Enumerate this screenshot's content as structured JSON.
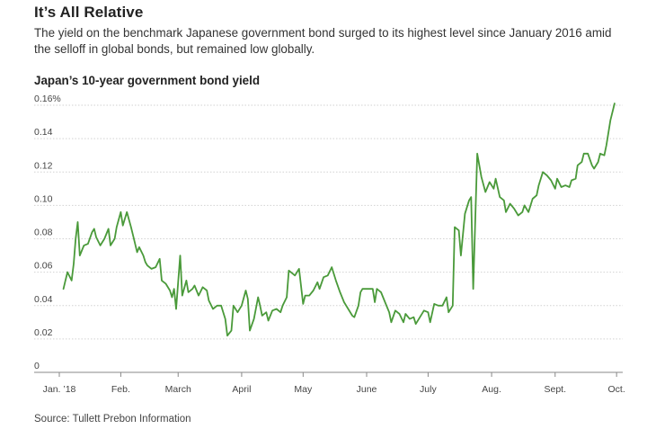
{
  "header": {
    "title": "It’s All Relative",
    "subtitle": "The yield on the benchmark Japanese government bond surged to its highest level since January 2016 amid the selloff in global bonds, but remained low globally."
  },
  "footer": {
    "source": "Source: Tullett Prebon Information"
  },
  "chart_data": {
    "type": "line",
    "title": "Japan’s 10-year government bond yield",
    "xlabel": "",
    "ylabel": "",
    "x_ticks": [
      "Jan. ’18",
      "Feb.",
      "March",
      "April",
      "May",
      "June",
      "July",
      "Aug.",
      "Sept.",
      "Oct."
    ],
    "y_ticks": [
      "0",
      "0.02",
      "0.04",
      "0.06",
      "0.08",
      "0.10",
      "0.12",
      "0.14",
      "0.16%"
    ],
    "ylim": [
      0,
      0.16
    ],
    "xlim": [
      "2018-01-02",
      "2018-10-04"
    ],
    "grid": "horizontal",
    "color": "#4a9a3a",
    "series": [
      {
        "values": [
          [
            "2018-01-04",
            0.05
          ],
          [
            "2018-01-05",
            0.055
          ],
          [
            "2018-01-06",
            0.06
          ],
          [
            "2018-01-08",
            0.055
          ],
          [
            "2018-01-09",
            0.065
          ],
          [
            "2018-01-10",
            0.08
          ],
          [
            "2018-01-11",
            0.09
          ],
          [
            "2018-01-12",
            0.07
          ],
          [
            "2018-01-14",
            0.076
          ],
          [
            "2018-01-16",
            0.077
          ],
          [
            "2018-01-18",
            0.084
          ],
          [
            "2018-01-19",
            0.086
          ],
          [
            "2018-01-20",
            0.081
          ],
          [
            "2018-01-22",
            0.076
          ],
          [
            "2018-01-24",
            0.08
          ],
          [
            "2018-01-26",
            0.086
          ],
          [
            "2018-01-27",
            0.076
          ],
          [
            "2018-01-29",
            0.08
          ],
          [
            "2018-01-30",
            0.087
          ],
          [
            "2018-02-01",
            0.096
          ],
          [
            "2018-02-02",
            0.088
          ],
          [
            "2018-02-04",
            0.096
          ],
          [
            "2018-02-06",
            0.087
          ],
          [
            "2018-02-07",
            0.082
          ],
          [
            "2018-02-09",
            0.072
          ],
          [
            "2018-02-10",
            0.075
          ],
          [
            "2018-02-12",
            0.07
          ],
          [
            "2018-02-13",
            0.066
          ],
          [
            "2018-02-14",
            0.064
          ],
          [
            "2018-02-16",
            0.062
          ],
          [
            "2018-02-18",
            0.063
          ],
          [
            "2018-02-20",
            0.068
          ],
          [
            "2018-02-21",
            0.055
          ],
          [
            "2018-02-23",
            0.053
          ],
          [
            "2018-02-25",
            0.049
          ],
          [
            "2018-02-26",
            0.045
          ],
          [
            "2018-02-27",
            0.05
          ],
          [
            "2018-02-28",
            0.038
          ],
          [
            "2018-03-02",
            0.07
          ],
          [
            "2018-03-03",
            0.046
          ],
          [
            "2018-03-05",
            0.055
          ],
          [
            "2018-03-06",
            0.048
          ],
          [
            "2018-03-08",
            0.05
          ],
          [
            "2018-03-09",
            0.052
          ],
          [
            "2018-03-11",
            0.046
          ],
          [
            "2018-03-13",
            0.051
          ],
          [
            "2018-03-15",
            0.049
          ],
          [
            "2018-03-16",
            0.043
          ],
          [
            "2018-03-18",
            0.038
          ],
          [
            "2018-03-20",
            0.04
          ],
          [
            "2018-03-22",
            0.04
          ],
          [
            "2018-03-24",
            0.032
          ],
          [
            "2018-03-25",
            0.022
          ],
          [
            "2018-03-27",
            0.025
          ],
          [
            "2018-03-28",
            0.04
          ],
          [
            "2018-03-30",
            0.036
          ],
          [
            "2018-04-01",
            0.04
          ],
          [
            "2018-04-03",
            0.049
          ],
          [
            "2018-04-04",
            0.044
          ],
          [
            "2018-04-05",
            0.025
          ],
          [
            "2018-04-07",
            0.032
          ],
          [
            "2018-04-09",
            0.045
          ],
          [
            "2018-04-10",
            0.04
          ],
          [
            "2018-04-11",
            0.034
          ],
          [
            "2018-04-13",
            0.036
          ],
          [
            "2018-04-14",
            0.031
          ],
          [
            "2018-04-16",
            0.037
          ],
          [
            "2018-04-18",
            0.038
          ],
          [
            "2018-04-20",
            0.036
          ],
          [
            "2018-04-21",
            0.04
          ],
          [
            "2018-04-23",
            0.045
          ],
          [
            "2018-04-24",
            0.061
          ],
          [
            "2018-04-25",
            0.06
          ],
          [
            "2018-04-27",
            0.058
          ],
          [
            "2018-04-29",
            0.062
          ],
          [
            "2018-05-01",
            0.041
          ],
          [
            "2018-05-02",
            0.046
          ],
          [
            "2018-05-04",
            0.046
          ],
          [
            "2018-05-06",
            0.049
          ],
          [
            "2018-05-08",
            0.054
          ],
          [
            "2018-05-09",
            0.05
          ],
          [
            "2018-05-11",
            0.057
          ],
          [
            "2018-05-13",
            0.058
          ],
          [
            "2018-05-15",
            0.063
          ],
          [
            "2018-05-17",
            0.055
          ],
          [
            "2018-05-19",
            0.048
          ],
          [
            "2018-05-21",
            0.042
          ],
          [
            "2018-05-23",
            0.038
          ],
          [
            "2018-05-25",
            0.034
          ],
          [
            "2018-05-26",
            0.033
          ],
          [
            "2018-05-28",
            0.04
          ],
          [
            "2018-05-29",
            0.048
          ],
          [
            "2018-05-30",
            0.05
          ],
          [
            "2018-06-01",
            0.05
          ],
          [
            "2018-06-04",
            0.05
          ],
          [
            "2018-06-05",
            0.042
          ],
          [
            "2018-06-06",
            0.05
          ],
          [
            "2018-06-08",
            0.048
          ],
          [
            "2018-06-10",
            0.042
          ],
          [
            "2018-06-12",
            0.036
          ],
          [
            "2018-06-13",
            0.03
          ],
          [
            "2018-06-15",
            0.037
          ],
          [
            "2018-06-17",
            0.035
          ],
          [
            "2018-06-19",
            0.03
          ],
          [
            "2018-06-20",
            0.035
          ],
          [
            "2018-06-22",
            0.032
          ],
          [
            "2018-06-24",
            0.033
          ],
          [
            "2018-06-25",
            0.029
          ],
          [
            "2018-06-27",
            0.033
          ],
          [
            "2018-06-29",
            0.037
          ],
          [
            "2018-07-01",
            0.036
          ],
          [
            "2018-07-02",
            0.03
          ],
          [
            "2018-07-04",
            0.041
          ],
          [
            "2018-07-06",
            0.04
          ],
          [
            "2018-07-08",
            0.04
          ],
          [
            "2018-07-10",
            0.045
          ],
          [
            "2018-07-11",
            0.036
          ],
          [
            "2018-07-13",
            0.04
          ],
          [
            "2018-07-14",
            0.087
          ],
          [
            "2018-07-16",
            0.085
          ],
          [
            "2018-07-17",
            0.07
          ],
          [
            "2018-07-19",
            0.095
          ],
          [
            "2018-07-21",
            0.103
          ],
          [
            "2018-07-22",
            0.105
          ],
          [
            "2018-07-23",
            0.05
          ],
          [
            "2018-07-25",
            0.131
          ],
          [
            "2018-07-27",
            0.117
          ],
          [
            "2018-07-29",
            0.108
          ],
          [
            "2018-07-31",
            0.114
          ],
          [
            "2018-08-02",
            0.11
          ],
          [
            "2018-08-03",
            0.116
          ],
          [
            "2018-08-05",
            0.105
          ],
          [
            "2018-08-07",
            0.103
          ],
          [
            "2018-08-08",
            0.096
          ],
          [
            "2018-08-10",
            0.101
          ],
          [
            "2018-08-12",
            0.098
          ],
          [
            "2018-08-14",
            0.094
          ],
          [
            "2018-08-16",
            0.096
          ],
          [
            "2018-08-17",
            0.1
          ],
          [
            "2018-08-19",
            0.096
          ],
          [
            "2018-08-21",
            0.104
          ],
          [
            "2018-08-23",
            0.106
          ],
          [
            "2018-08-24",
            0.112
          ],
          [
            "2018-08-26",
            0.12
          ],
          [
            "2018-08-28",
            0.118
          ],
          [
            "2018-08-30",
            0.115
          ],
          [
            "2018-09-01",
            0.11
          ],
          [
            "2018-09-02",
            0.116
          ],
          [
            "2018-09-04",
            0.111
          ],
          [
            "2018-09-06",
            0.112
          ],
          [
            "2018-09-08",
            0.111
          ],
          [
            "2018-09-09",
            0.115
          ],
          [
            "2018-09-11",
            0.116
          ],
          [
            "2018-09-12",
            0.124
          ],
          [
            "2018-09-14",
            0.126
          ],
          [
            "2018-09-15",
            0.131
          ],
          [
            "2018-09-17",
            0.131
          ],
          [
            "2018-09-19",
            0.124
          ],
          [
            "2018-09-20",
            0.122
          ],
          [
            "2018-09-22",
            0.126
          ],
          [
            "2018-09-23",
            0.131
          ],
          [
            "2018-09-25",
            0.13
          ],
          [
            "2018-09-26",
            0.136
          ],
          [
            "2018-09-28",
            0.151
          ],
          [
            "2018-09-30",
            0.161
          ]
        ]
      }
    ]
  }
}
